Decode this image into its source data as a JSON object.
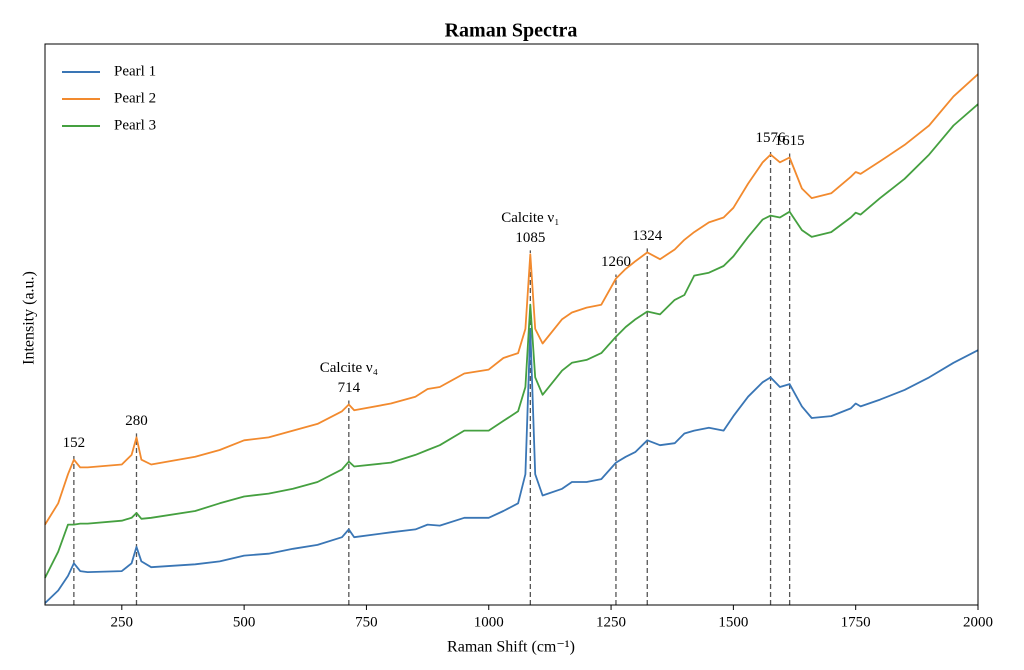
{
  "chart_data": {
    "type": "line",
    "title": "Raman Spectra",
    "x_label": "Raman Shift (cm⁻¹)",
    "y_label": "Intensity (a.u.)",
    "xlim": [
      93,
      2000
    ],
    "xticks": [
      250,
      500,
      750,
      1000,
      1250,
      1500,
      1750,
      2000
    ],
    "ylim": [
      0,
      575
    ],
    "legend": "upper left",
    "x": [
      93,
      120,
      140,
      152,
      165,
      180,
      250,
      270,
      280,
      290,
      310,
      400,
      450,
      500,
      550,
      600,
      650,
      700,
      714,
      725,
      800,
      850,
      875,
      900,
      950,
      1000,
      1030,
      1060,
      1075,
      1085,
      1095,
      1110,
      1150,
      1170,
      1200,
      1230,
      1260,
      1280,
      1300,
      1324,
      1350,
      1380,
      1400,
      1420,
      1450,
      1480,
      1500,
      1530,
      1560,
      1576,
      1595,
      1615,
      1640,
      1660,
      1700,
      1740,
      1750,
      1760,
      1800,
      1850,
      1900,
      1950,
      2000
    ],
    "series": [
      {
        "name": "Pearl 1",
        "color": "#3a76b5",
        "values": [
          2,
          15,
          30,
          43,
          35,
          34,
          35,
          43,
          60,
          45,
          39,
          42,
          45,
          51,
          53,
          58,
          62,
          70,
          78,
          70,
          75,
          78,
          83,
          82,
          90,
          90,
          97,
          105,
          135,
          285,
          135,
          113,
          120,
          127,
          127,
          130,
          147,
          153,
          158,
          170,
          165,
          167,
          177,
          180,
          183,
          180,
          195,
          215,
          230,
          235,
          225,
          228,
          205,
          193,
          195,
          203,
          208,
          205,
          212,
          222,
          235,
          250,
          263
        ]
      },
      {
        "name": "Pearl 2",
        "color": "#f28a2e",
        "values": [
          83,
          105,
          135,
          150,
          142,
          142,
          145,
          155,
          173,
          150,
          145,
          153,
          160,
          170,
          173,
          180,
          187,
          200,
          207,
          201,
          208,
          215,
          223,
          225,
          239,
          243,
          255,
          260,
          285,
          362,
          285,
          270,
          295,
          302,
          307,
          310,
          337,
          347,
          355,
          364,
          357,
          367,
          377,
          385,
          395,
          400,
          410,
          435,
          457,
          465,
          457,
          462,
          430,
          420,
          425,
          442,
          447,
          445,
          458,
          475,
          495,
          525,
          548
        ]
      },
      {
        "name": "Pearl 3",
        "color": "#45a040",
        "values": [
          28,
          55,
          83,
          83,
          84,
          84,
          87,
          90,
          95,
          89,
          90,
          97,
          105,
          112,
          115,
          120,
          127,
          140,
          148,
          143,
          147,
          155,
          160,
          165,
          180,
          180,
          190,
          200,
          225,
          310,
          235,
          217,
          242,
          250,
          253,
          260,
          277,
          287,
          295,
          303,
          300,
          315,
          320,
          340,
          343,
          350,
          360,
          380,
          398,
          402,
          400,
          406,
          387,
          380,
          385,
          400,
          405,
          403,
          420,
          440,
          465,
          495,
          517
        ]
      }
    ],
    "annotations": [
      {
        "x": 152
      },
      {
        "x": 280
      },
      {
        "x": 714,
        "name": "Calcite ν₄"
      },
      {
        "x": 1085,
        "name": "Calcite ν₁"
      },
      {
        "x": 1260
      },
      {
        "x": 1324
      },
      {
        "x": 1576
      },
      {
        "x": 1615
      }
    ]
  }
}
